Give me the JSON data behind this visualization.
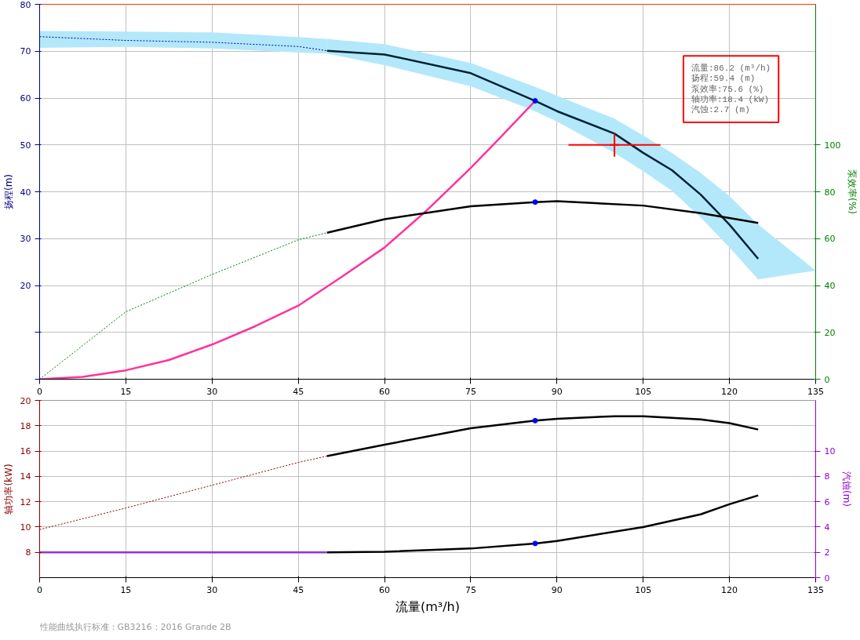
{
  "chart_data": [
    {
      "type": "line",
      "ylabel": "扬程(m)",
      "y2label": "泵效率(%)",
      "xlim": [
        0,
        135
      ],
      "xticks": [
        0,
        15,
        30,
        45,
        60,
        75,
        90,
        105,
        120,
        135
      ],
      "ylim": [
        0,
        80
      ],
      "yticks": [
        {
          "value": 0,
          "label": null
        },
        {
          "value": 10,
          "label": null
        },
        20,
        30,
        40,
        50,
        60,
        70,
        80
      ],
      "y2lim": [
        0,
        160
      ],
      "y2ticks": [
        0,
        20,
        40,
        60,
        80,
        100
      ],
      "grid": true,
      "annotations": [
        "流量:86.2 (m³/h)\n扬程:59.4 (m)\n泵效率:75.6 (%)\n轴功率:18.4 (kW)\n汽蚀:2.7 (m)"
      ],
      "series": [
        {
          "color": "#ff3399",
          "x": [
            0,
            7.5,
            15,
            22.5,
            30,
            37.5,
            45,
            52.5,
            60,
            67.5,
            75,
            80,
            86.2
          ],
          "values": [
            0,
            0.5,
            1.9,
            4.1,
            7.4,
            11.3,
            15.7,
            21.8,
            28.1,
            36.2,
            45.1,
            51.4,
            59.4
          ]
        },
        {
          "color": "#0000aa",
          "line_style": "dashed",
          "x": [
            0,
            15,
            30,
            45,
            50
          ],
          "values": [
            73.1,
            72.3,
            71.9,
            71.0,
            70.1
          ],
          "lower": [
            70.7,
            70.9,
            70.6,
            69.7,
            69.5
          ],
          "upper": [
            74.3,
            74.2,
            74.0,
            73.0,
            72.6
          ]
        },
        {
          "color": "#002233",
          "x": [
            50,
            60,
            75,
            86.2,
            90,
            100,
            105,
            110,
            115,
            120,
            125,
            135
          ],
          "values": [
            70.1,
            69.3,
            65.3,
            59.4,
            57.2,
            52.4,
            48.3,
            44.6,
            39.4,
            33.0,
            25.7,
            null
          ],
          "lower": [
            69.5,
            67.0,
            62.5,
            57.2,
            55.0,
            48.3,
            44.4,
            40.2,
            34.5,
            28.1,
            21.3,
            23.2
          ],
          "upper": [
            72.6,
            71.5,
            67.5,
            62.4,
            60.5,
            55.6,
            52.0,
            48.3,
            44.0,
            39.1,
            33.0,
            23.2
          ]
        },
        {
          "color": "#008000",
          "line_style": "dashed",
          "axis": "y2",
          "x": [
            0,
            15,
            30,
            45,
            50
          ],
          "values": [
            0,
            28.8,
            44.7,
            59.5,
            62.5
          ]
        },
        {
          "color": "#000000",
          "axis": "y2",
          "x": [
            50,
            60,
            75,
            86.2,
            90,
            105,
            115,
            125
          ],
          "values": [
            62.5,
            68.3,
            73.8,
            75.6,
            76.0,
            74.1,
            70.9,
            66.7
          ]
        },
        {
          "type": "scatter",
          "color": "#0000ff",
          "marker": "circle",
          "x": [
            86.2
          ],
          "values": [
            59.4
          ]
        },
        {
          "type": "scatter",
          "color": "#0000ff",
          "marker": "circle",
          "axis": "y2",
          "x": [
            86.2
          ],
          "values": [
            75.6
          ]
        },
        {
          "type": "scatter",
          "color": "#ff0000",
          "marker": "cross",
          "x": [
            100
          ],
          "values": [
            50
          ],
          "xerrors": [
            8
          ],
          "errors": [
            2.5
          ]
        }
      ]
    },
    {
      "type": "line",
      "ylabel": "轴功率(kW)",
      "y2label": "汽蚀(m)",
      "xlabel": "流量(m³/h)",
      "xlim": [
        0,
        135
      ],
      "xticks": [
        0,
        15,
        30,
        45,
        60,
        75,
        90,
        105,
        120,
        135
      ],
      "ylim": [
        6,
        20
      ],
      "yticks": [
        8,
        10,
        12,
        14,
        16,
        18,
        20
      ],
      "y2lim": [
        0,
        14
      ],
      "y2ticks": [
        0,
        2,
        4,
        6,
        8,
        10
      ],
      "grid": true,
      "annotations": [
        "性能曲线执行标准：GB3216：2016 Grande 2B"
      ],
      "series": [
        {
          "color": "#8b0000",
          "line_style": "dashed",
          "x": [
            0,
            15,
            30,
            45,
            50
          ],
          "values": [
            9.8,
            11.5,
            13.3,
            15.1,
            15.6
          ]
        },
        {
          "color": "#000000",
          "x": [
            50,
            60,
            75,
            86.2,
            90,
            100,
            105,
            115,
            120,
            125
          ],
          "values": [
            15.6,
            16.5,
            17.8,
            18.4,
            18.55,
            18.75,
            18.75,
            18.5,
            18.2,
            17.7
          ]
        },
        {
          "color": "#9933cc",
          "axis": "y2",
          "x": [
            0,
            50
          ],
          "values": [
            2.0,
            2.0
          ]
        },
        {
          "color": "#000000",
          "axis": "y2",
          "x": [
            50,
            60,
            75,
            86.2,
            90,
            105,
            115,
            120,
            125
          ],
          "values": [
            2.0,
            2.05,
            2.3,
            2.7,
            2.9,
            4.0,
            5.0,
            5.8,
            6.5
          ]
        },
        {
          "type": "scatter",
          "color": "#0000ff",
          "marker": "circle",
          "x": [
            86.2
          ],
          "values": [
            18.4
          ]
        },
        {
          "type": "scatter",
          "color": "#0000ff",
          "marker": "circle",
          "axis": "y2",
          "x": [
            86.2
          ],
          "values": [
            2.7
          ]
        }
      ]
    }
  ]
}
